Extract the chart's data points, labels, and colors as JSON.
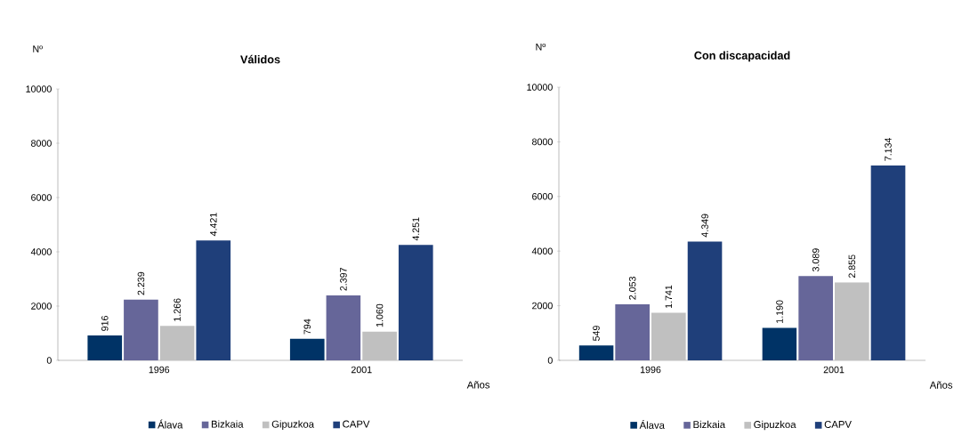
{
  "chart_data": [
    {
      "type": "bar",
      "title": "**Válidos**",
      "ylabel": "Nº",
      "xlabel": "Años",
      "categories": [
        "1996",
        "2001"
      ],
      "ylim": [
        0,
        10000
      ],
      "yticks": [
        0,
        2000,
        4000,
        6000,
        8000,
        10000
      ],
      "grid": false,
      "legend": "bottom",
      "series": [
        {
          "name": "Álava",
          "color": "#003366",
          "values": [
            916,
            794
          ],
          "value_labels": [
            "916",
            "794"
          ]
        },
        {
          "name": "Bizkaia",
          "color": "#666699",
          "values": [
            2239,
            2397
          ],
          "value_labels": [
            "2.239",
            "2.397"
          ]
        },
        {
          "name": "Gipuzkoa",
          "color": "#c0c0c0",
          "values": [
            1266,
            1060
          ],
          "value_labels": [
            "1.266",
            "1.060"
          ]
        },
        {
          "name": "CAPV",
          "color": "#1f3f7a",
          "values": [
            4421,
            4251
          ],
          "value_labels": [
            "4.421",
            "4.251"
          ]
        }
      ]
    },
    {
      "type": "bar",
      "title": "**Con discapacidad**",
      "ylabel": "Nº",
      "xlabel": "Años",
      "categories": [
        "1996",
        "2001"
      ],
      "ylim": [
        0,
        10000
      ],
      "yticks": [
        0,
        2000,
        4000,
        6000,
        8000,
        10000
      ],
      "grid": false,
      "legend": "bottom",
      "series": [
        {
          "name": "Álava",
          "color": "#003366",
          "values": [
            549,
            1190
          ],
          "value_labels": [
            "549",
            "1.190"
          ]
        },
        {
          "name": "Bizkaia",
          "color": "#666699",
          "values": [
            2053,
            3089
          ],
          "value_labels": [
            "2.053",
            "3.089"
          ]
        },
        {
          "name": "Gipuzkoa",
          "color": "#c0c0c0",
          "values": [
            1741,
            2855
          ],
          "value_labels": [
            "1.741",
            "2.855"
          ]
        },
        {
          "name": "CAPV",
          "color": "#1f3f7a",
          "values": [
            4349,
            7134
          ],
          "value_labels": [
            "4.349",
            "7.134"
          ]
        }
      ]
    }
  ]
}
